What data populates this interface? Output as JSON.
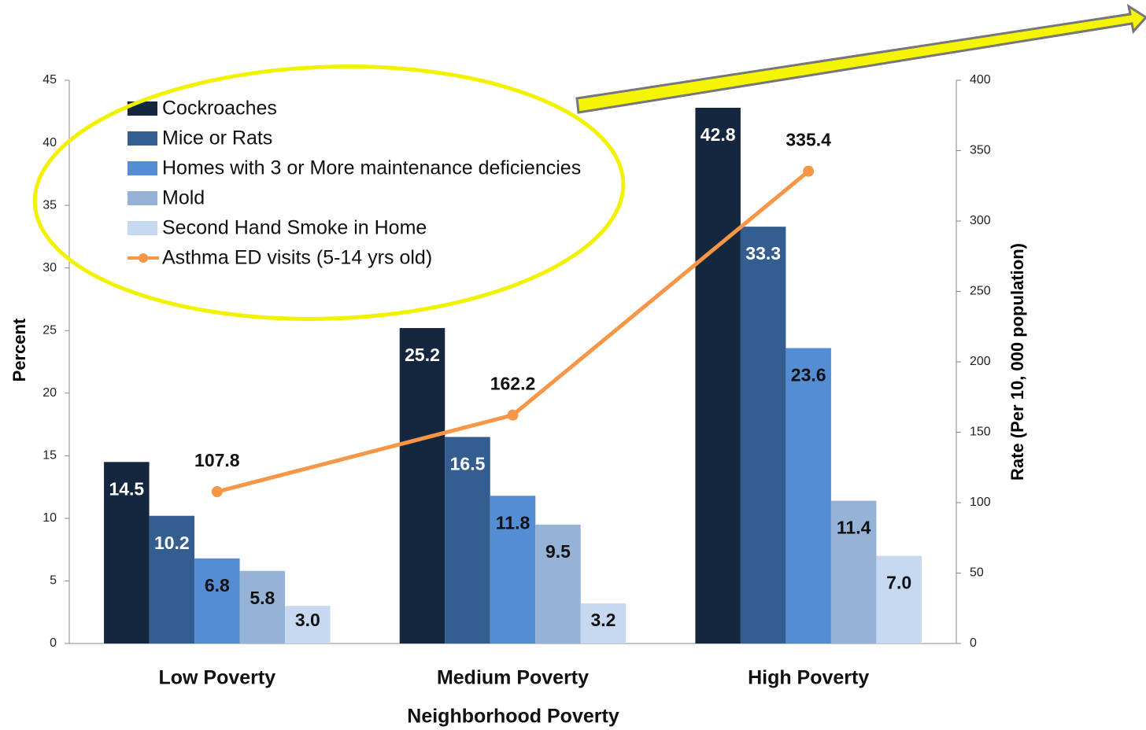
{
  "chart_data": {
    "type": "bar",
    "x_label": "Neighborhood Poverty",
    "y_label": "Percent",
    "y2_label": "Rate (Per 10, 000 population)",
    "categories": [
      "Low Poverty",
      "Medium Poverty",
      "High Poverty"
    ],
    "series": [
      {
        "name": "Cockroaches",
        "color": "#14273f",
        "values": [
          14.5,
          25.2,
          42.8
        ],
        "value_labels": [
          "14.5",
          "25.2",
          "42.8"
        ]
      },
      {
        "name": "Mice or Rats",
        "color": "#345e8f",
        "values": [
          10.2,
          16.5,
          33.3
        ],
        "value_labels": [
          "10.2",
          "16.5",
          "33.3"
        ]
      },
      {
        "name": "Homes with 3 or More maintenance deficiencies",
        "color": "#548dd4",
        "values": [
          6.8,
          11.8,
          23.6
        ],
        "value_labels": [
          "6.8",
          "11.8",
          "23.6"
        ]
      },
      {
        "name": "Mold",
        "color": "#95b3d7",
        "values": [
          5.8,
          9.5,
          11.4
        ],
        "value_labels": [
          "5.8",
          "9.5",
          "11.4"
        ]
      },
      {
        "name": "Second Hand Smoke in Home",
        "color": "#c6d9f1",
        "values": [
          3,
          3.2,
          7
        ],
        "value_labels": [
          "3.0",
          "3.2",
          "7.0"
        ]
      },
      {
        "name": "Asthma ED visits (5-14 yrs old)",
        "color": "#f79646",
        "type": "line",
        "axis": "y2",
        "values": [
          107.8,
          162.2,
          335.4
        ],
        "value_labels": [
          "107.8",
          "162.2",
          "335.4"
        ]
      }
    ],
    "ylim": [
      0,
      45
    ],
    "yticks": [
      0,
      5,
      10,
      15,
      20,
      25,
      30,
      35,
      40,
      45
    ],
    "y2lim": [
      0,
      400
    ],
    "y2ticks": [
      0,
      50,
      100,
      150,
      200,
      250,
      300,
      350,
      400
    ],
    "grid": false,
    "legend": "upper left"
  }
}
